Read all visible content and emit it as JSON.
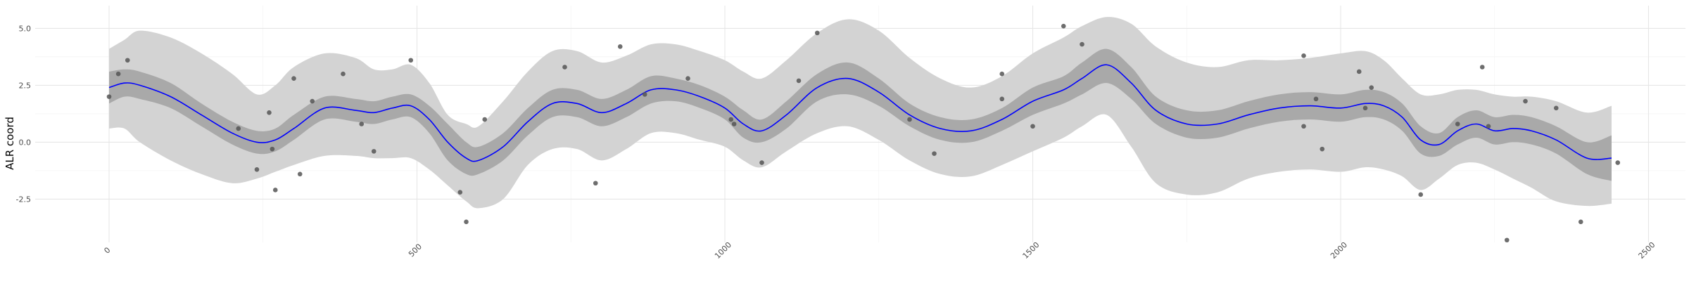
{
  "chart_data": {
    "type": "line",
    "xlabel": "",
    "ylabel": "ALR coord",
    "xlim": [
      -120,
      2560
    ],
    "ylim": [
      -4.4,
      6.0
    ],
    "grid": true,
    "x_ticks": [
      0,
      500,
      1000,
      1500,
      2000,
      2500
    ],
    "x_tick_labels": [
      "0",
      "500",
      "1000",
      "1500",
      "2000",
      "2500"
    ],
    "y_ticks": [
      -2.5,
      0.0,
      2.5,
      5.0
    ],
    "y_tick_labels": [
      "-2.5",
      "0.0",
      "2.5",
      "5.0"
    ],
    "colors": {
      "line": "#0000ff",
      "inner_band": "#a9a9a9",
      "outer_band": "#d3d3d3",
      "points": "#555555",
      "grid_major": "#e6e6e6",
      "grid_minor": "#f2f2f2"
    },
    "series": [
      {
        "type": "line",
        "x": [
          0,
          25,
          50,
          100,
          150,
          200,
          240,
          270,
          300,
          350,
          400,
          430,
          460,
          490,
          520,
          550,
          580,
          600,
          640,
          680,
          720,
          760,
          800,
          840,
          880,
          920,
          960,
          1000,
          1030,
          1060,
          1100,
          1150,
          1200,
          1250,
          1300,
          1350,
          1400,
          1450,
          1500,
          1550,
          1580,
          1620,
          1660,
          1700,
          1750,
          1800,
          1850,
          1900,
          1950,
          2000,
          2040,
          2070,
          2100,
          2130,
          2160,
          2190,
          2220,
          2250,
          2280,
          2310,
          2350,
          2400,
          2440
        ],
        "y": [
          2.4,
          2.6,
          2.5,
          2.0,
          1.2,
          0.4,
          0.0,
          0.1,
          0.6,
          1.5,
          1.4,
          1.3,
          1.5,
          1.6,
          1.0,
          0.0,
          -0.7,
          -0.8,
          -0.2,
          0.9,
          1.7,
          1.7,
          1.3,
          1.7,
          2.3,
          2.3,
          2.0,
          1.5,
          0.8,
          0.5,
          1.2,
          2.4,
          2.8,
          2.2,
          1.2,
          0.6,
          0.5,
          1.0,
          1.8,
          2.3,
          2.8,
          3.4,
          2.6,
          1.4,
          0.8,
          0.8,
          1.2,
          1.5,
          1.6,
          1.5,
          1.7,
          1.6,
          1.1,
          0.1,
          -0.1,
          0.5,
          0.8,
          0.5,
          0.6,
          0.5,
          0.1,
          -0.7,
          -0.7
        ],
        "inner_lower": [
          1.7,
          2.0,
          1.9,
          1.5,
          0.7,
          -0.1,
          -0.5,
          -0.4,
          0.1,
          1.0,
          0.9,
          0.8,
          1.0,
          1.1,
          0.4,
          -0.8,
          -1.4,
          -1.4,
          -0.8,
          0.3,
          1.1,
          1.1,
          0.7,
          1.1,
          1.7,
          1.8,
          1.5,
          1.0,
          0.2,
          0.0,
          0.6,
          1.8,
          2.1,
          1.6,
          0.7,
          0.1,
          0.0,
          0.5,
          1.2,
          1.7,
          2.1,
          2.6,
          1.9,
          0.8,
          0.2,
          0.2,
          0.6,
          0.9,
          1.0,
          0.9,
          1.1,
          1.0,
          0.5,
          -0.5,
          -0.6,
          -0.1,
          0.2,
          -0.1,
          0.0,
          -0.1,
          -0.5,
          -1.4,
          -1.7
        ],
        "inner_upper": [
          3.1,
          3.2,
          3.1,
          2.6,
          1.7,
          0.9,
          0.5,
          0.6,
          1.2,
          2.0,
          1.9,
          1.8,
          2.0,
          2.1,
          1.6,
          0.8,
          0.0,
          -0.2,
          0.4,
          1.5,
          2.3,
          2.3,
          1.9,
          2.3,
          2.9,
          2.8,
          2.5,
          2.0,
          1.4,
          1.0,
          1.8,
          3.0,
          3.5,
          2.8,
          1.7,
          1.1,
          1.0,
          1.5,
          2.4,
          2.9,
          3.5,
          4.1,
          3.3,
          2.0,
          1.4,
          1.4,
          1.8,
          2.1,
          2.2,
          2.1,
          2.3,
          2.2,
          1.7,
          0.7,
          0.4,
          1.1,
          1.4,
          1.1,
          1.2,
          1.1,
          0.7,
          0.0,
          0.3
        ],
        "outer_lower": [
          0.6,
          0.6,
          0.0,
          -0.8,
          -1.4,
          -1.8,
          -1.6,
          -1.3,
          -1.0,
          -0.6,
          -0.6,
          -0.7,
          -0.7,
          -0.7,
          -1.2,
          -1.9,
          -2.6,
          -2.9,
          -2.5,
          -1.0,
          -0.3,
          -0.3,
          -0.8,
          -0.3,
          0.4,
          0.4,
          0.1,
          -0.2,
          -0.8,
          -1.1,
          -0.4,
          0.4,
          0.7,
          0.1,
          -0.8,
          -1.4,
          -1.5,
          -1.0,
          -0.4,
          0.2,
          0.7,
          1.2,
          -0.2,
          -1.8,
          -2.3,
          -2.2,
          -1.6,
          -1.3,
          -1.2,
          -1.3,
          -1.1,
          -1.2,
          -1.5,
          -2.1,
          -1.6,
          -1.0,
          -0.9,
          -1.2,
          -1.6,
          -2.0,
          -2.6,
          -2.8,
          -2.7
        ],
        "outer_upper": [
          4.1,
          4.5,
          4.9,
          4.6,
          3.9,
          3.0,
          2.1,
          2.5,
          3.3,
          3.9,
          3.7,
          3.2,
          3.2,
          3.4,
          2.6,
          1.2,
          0.8,
          0.7,
          1.8,
          3.1,
          4.0,
          4.0,
          3.5,
          3.8,
          4.3,
          4.3,
          4.0,
          3.6,
          3.1,
          2.8,
          3.6,
          4.8,
          5.4,
          4.9,
          3.7,
          2.8,
          2.4,
          2.9,
          3.9,
          4.6,
          5.1,
          5.5,
          5.2,
          4.2,
          3.5,
          3.3,
          3.6,
          3.6,
          3.7,
          3.9,
          4.0,
          3.6,
          2.8,
          2.1,
          2.1,
          2.3,
          2.3,
          2.1,
          2.0,
          2.0,
          1.8,
          1.3,
          1.6
        ]
      },
      {
        "type": "scatter",
        "x": [
          0,
          15,
          30,
          210,
          240,
          260,
          265,
          270,
          300,
          310,
          330,
          380,
          410,
          430,
          490,
          570,
          580,
          610,
          740,
          790,
          830,
          870,
          940,
          1010,
          1015,
          1060,
          1120,
          1150,
          1300,
          1340,
          1450,
          1450,
          1500,
          1550,
          1580,
          1940,
          1940,
          1960,
          1970,
          2030,
          2040,
          2050,
          2130,
          2190,
          2230,
          2240,
          2270,
          2300,
          2350,
          2390,
          2450
        ],
        "y": [
          2.0,
          3.0,
          3.6,
          0.6,
          -1.2,
          1.3,
          -0.3,
          -2.1,
          2.8,
          -1.4,
          1.8,
          3.0,
          0.8,
          -0.4,
          3.6,
          -2.2,
          -3.5,
          1.0,
          3.3,
          -1.8,
          4.2,
          2.1,
          2.8,
          1.0,
          0.8,
          -0.9,
          2.7,
          4.8,
          1.0,
          -0.5,
          3.0,
          1.9,
          0.7,
          5.1,
          4.3,
          0.7,
          3.8,
          1.9,
          -0.3,
          3.1,
          1.5,
          2.4,
          -2.3,
          0.8,
          3.3,
          0.7,
          -4.3,
          1.8,
          1.5,
          -3.5,
          -0.9
        ]
      }
    ]
  }
}
